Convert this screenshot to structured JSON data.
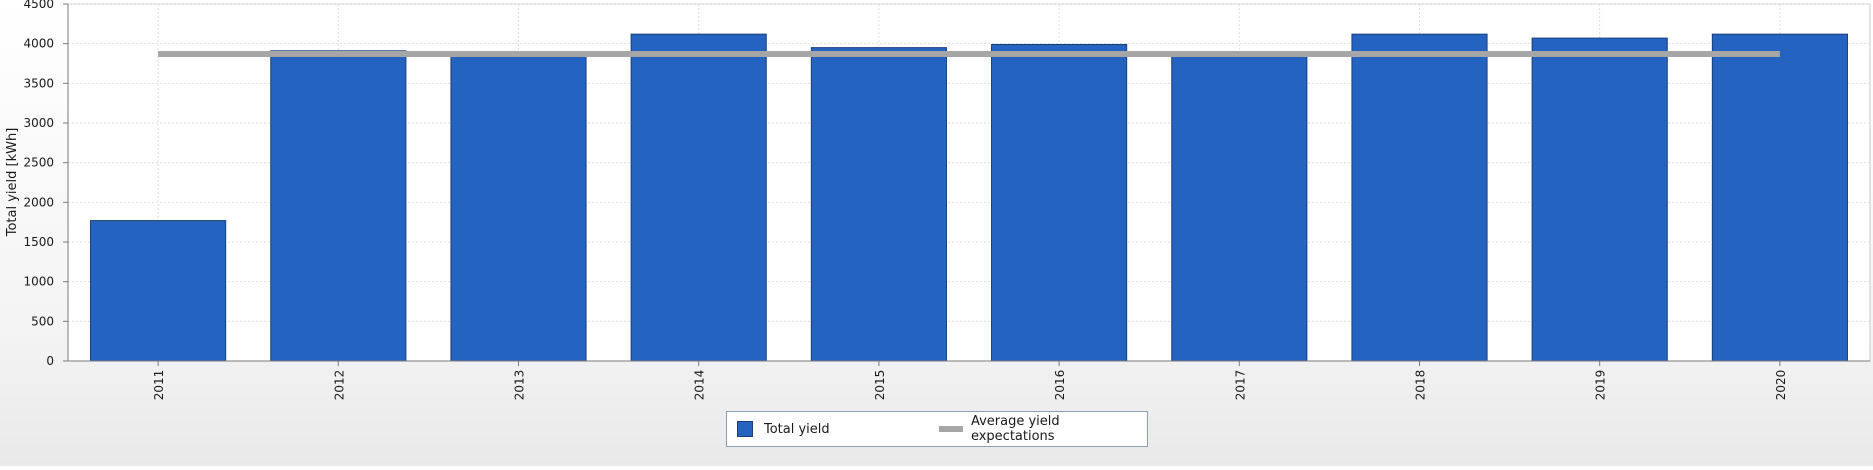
{
  "chart_data": {
    "type": "bar",
    "title": "",
    "xlabel": "",
    "ylabel": "Total yield [kWh]",
    "categories": [
      "2011",
      "2012",
      "2013",
      "2014",
      "2015",
      "2016",
      "2017",
      "2018",
      "2019",
      "2020"
    ],
    "series": [
      {
        "name": "Total yield",
        "type": "bar",
        "color": "#2563c0",
        "values": [
          1770,
          3910,
          3840,
          4120,
          3950,
          3990,
          3880,
          4120,
          4070,
          4120
        ]
      },
      {
        "name": "Average yield expectations",
        "type": "line",
        "color": "#a6a6a6",
        "values": [
          3870,
          3870,
          3870,
          3870,
          3870,
          3870,
          3870,
          3870,
          3870,
          3870
        ]
      }
    ],
    "ylim": [
      0,
      4500
    ],
    "yticks": [
      0,
      500,
      1000,
      1500,
      2000,
      2500,
      3000,
      3500,
      4000,
      4500
    ],
    "grid": true,
    "legend_position": "bottom"
  }
}
